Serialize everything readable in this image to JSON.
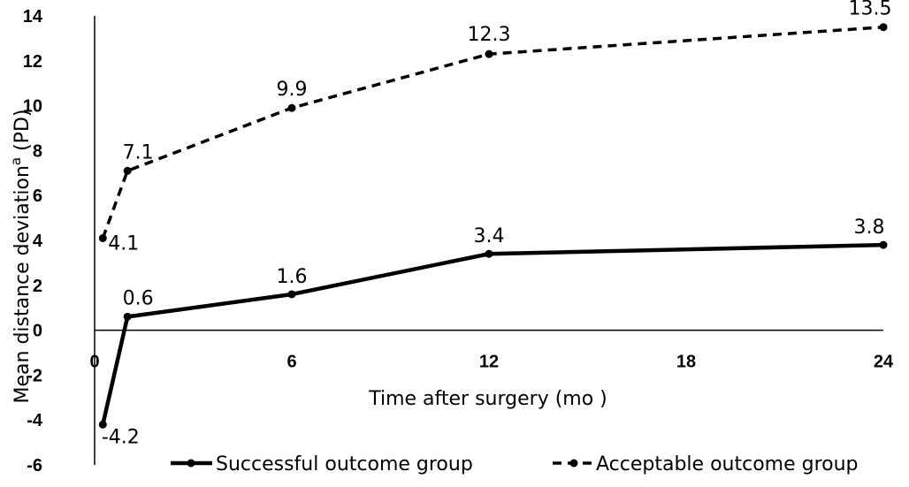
{
  "chart_data": {
    "type": "line",
    "xlabel": "Time after surgery (mo )",
    "ylabel_main": "Mean distance deviation",
    "ylabel_sup": "a",
    "ylabel_unit": " (PD)",
    "xlim": [
      0,
      24
    ],
    "ylim": [
      -6,
      14
    ],
    "x_ticks": [
      "0",
      "6",
      "12",
      "18",
      "24"
    ],
    "x_tick_values": [
      0,
      6,
      12,
      18,
      24
    ],
    "y_ticks": [
      "-6",
      "-4",
      "-2",
      "0",
      "2",
      "4",
      "6",
      "8",
      "10",
      "12",
      "14"
    ],
    "y_tick_values": [
      -6,
      -4,
      -2,
      0,
      2,
      4,
      6,
      8,
      10,
      12,
      14
    ],
    "grid": false,
    "legend_position": "bottom",
    "series": [
      {
        "name": "Successful outcome group",
        "style": "solid",
        "color": "#000000",
        "x": [
          0.25,
          1,
          6,
          12,
          24
        ],
        "y": [
          -4.2,
          0.6,
          1.6,
          3.4,
          3.8
        ],
        "labels": [
          "-4.2",
          "0.6",
          "1.6",
          "3.4",
          "3.8"
        ]
      },
      {
        "name": "Acceptable outcome group",
        "style": "dashed",
        "color": "#000000",
        "x": [
          0.25,
          1,
          6,
          12,
          24
        ],
        "y": [
          4.1,
          7.1,
          9.9,
          12.3,
          13.5
        ],
        "labels": [
          "4.1",
          "7.1",
          "9.9",
          "12.3",
          "13.5"
        ]
      }
    ]
  }
}
